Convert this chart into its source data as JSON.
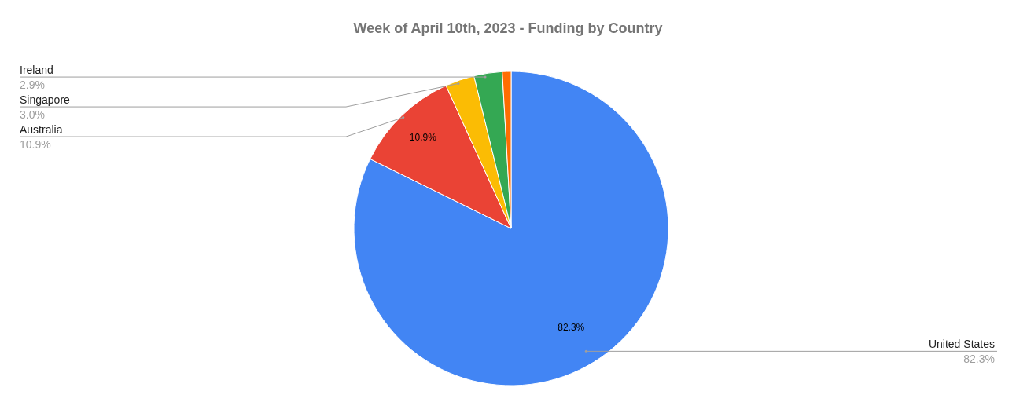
{
  "chart_data": {
    "type": "pie",
    "title": "Week of April 10th, 2023 - Funding by Country",
    "categories": [
      "United States",
      "Australia",
      "Singapore",
      "Ireland",
      null
    ],
    "values": [
      82.3,
      10.9,
      3.0,
      2.9,
      0.9
    ],
    "colors": [
      "#4285f4",
      "#ea4335",
      "#fbbc04",
      "#34a853",
      "#ff6d01"
    ],
    "value_labels": [
      "82.3%",
      "10.9%",
      "3.0%",
      "2.9%",
      null
    ]
  }
}
